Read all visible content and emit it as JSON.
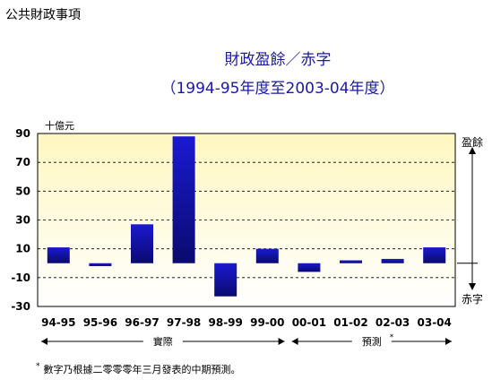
{
  "section_title": "公共財政事項",
  "chart_data": {
    "type": "bar",
    "title": "財政盈餘／赤字",
    "subtitle": "（1994-95年度至2003-04年度）",
    "ylabel": "十億元",
    "categories": [
      "94-95",
      "95-96",
      "96-97",
      "97-98",
      "98-99",
      "99-00",
      "00-01",
      "01-02",
      "02-03",
      "03-04"
    ],
    "values": [
      11,
      -2,
      27,
      88,
      -23,
      10,
      -6,
      2,
      3,
      11
    ],
    "ylim": [
      -30,
      90
    ],
    "yticks": [
      90,
      70,
      50,
      30,
      10,
      -10,
      -30
    ],
    "grid": true,
    "surplus_label": "盈餘",
    "deficit_label": "赤字",
    "groups": [
      {
        "label": "實際",
        "note": ""
      },
      {
        "label": "預測",
        "note": "*"
      }
    ],
    "bar_color": "#1414c8",
    "plot_top_color": "#fffacd"
  },
  "footnote": {
    "marker": "*",
    "text": "數字乃根據二零零零年三月發表的中期預測。"
  }
}
